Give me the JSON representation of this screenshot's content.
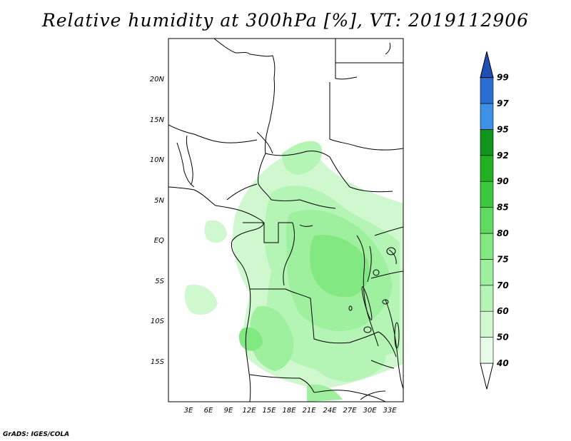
{
  "title": "Relative humidity at 300hPa [%], VT: 2019112906",
  "credit": "GrADS: IGES/COLA",
  "map": {
    "lon_range": [
      0,
      35
    ],
    "lat_range": [
      -20,
      25
    ],
    "lon_ticks": [
      "3E",
      "6E",
      "9E",
      "12E",
      "15E",
      "18E",
      "21E",
      "24E",
      "27E",
      "30E",
      "33E"
    ],
    "lat_ticks": [
      "20N",
      "15N",
      "10N",
      "5N",
      "EQ",
      "5S",
      "10S",
      "15S"
    ]
  },
  "colorbar": {
    "levels": [
      "40",
      "50",
      "60",
      "70",
      "75",
      "80",
      "85",
      "90",
      "92",
      "95",
      "97",
      "99"
    ],
    "colors": [
      "#ffffff",
      "#e6fce6",
      "#cff8cf",
      "#b4f4b4",
      "#9ef09e",
      "#82e882",
      "#5fdc5f",
      "#3cc83c",
      "#21b021",
      "#10941b",
      "#3c91e6",
      "#2a6ed4",
      "#1f4fb4"
    ]
  }
}
